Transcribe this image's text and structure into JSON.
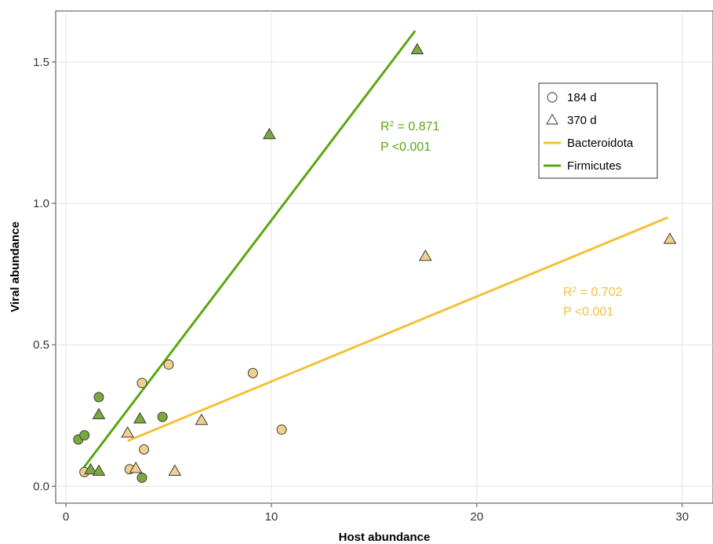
{
  "chart_data": {
    "type": "scatter",
    "xlabel": "Host abundance",
    "ylabel": "Viral abundance",
    "xlim": [
      -0.5,
      31.5
    ],
    "ylim": [
      -0.06,
      1.68
    ],
    "xticks": [
      0,
      10,
      20,
      30
    ],
    "yticks": [
      0.0,
      0.5,
      1.0,
      1.5
    ],
    "xtick_labels": [
      "0",
      "10",
      "20",
      "30"
    ],
    "ytick_labels": [
      "0.0",
      "0.5",
      "1.0",
      "1.5"
    ],
    "grid": true,
    "legend_position": "top-right",
    "legend": {
      "markers": [
        {
          "label": "184 d",
          "shape": "circle"
        },
        {
          "label": "370 d",
          "shape": "triangle"
        }
      ],
      "lines": [
        {
          "label": "Bacteroidota",
          "color": "#f2c23a"
        },
        {
          "label": "Firmicutes",
          "color": "#5aa812"
        }
      ]
    },
    "series": [
      {
        "name": "Firmicutes",
        "color": "#7aaa3e",
        "line_color": "#5aa812",
        "fit": {
          "x": [
            0.7,
            17.0
          ],
          "y": [
            0.05,
            1.61
          ]
        },
        "annotation": {
          "r2_prefix": "R",
          "r2_sup": "2",
          "r2_value": " = 0.871",
          "p": "P <0.001"
        },
        "points_184d": [
          [
            0.6,
            0.165
          ],
          [
            0.9,
            0.18
          ],
          [
            1.6,
            0.315
          ],
          [
            4.7,
            0.245
          ],
          [
            3.7,
            0.03
          ]
        ],
        "points_370d": [
          [
            1.2,
            0.06
          ],
          [
            1.6,
            0.055
          ],
          [
            1.6,
            0.255
          ],
          [
            3.6,
            0.24
          ],
          [
            9.9,
            1.245
          ],
          [
            17.1,
            1.545
          ]
        ]
      },
      {
        "name": "Bacteroidota",
        "color": "#f1cf8f",
        "line_color": "#f2c23a",
        "fit": {
          "x": [
            3.0,
            29.3
          ],
          "y": [
            0.16,
            0.95
          ]
        },
        "annotation": {
          "r2_prefix": "R",
          "r2_sup": "2",
          "r2_value": " = 0.702",
          "p": "P <0.001"
        },
        "points_184d": [
          [
            0.9,
            0.05
          ],
          [
            3.1,
            0.06
          ],
          [
            3.8,
            0.13
          ],
          [
            3.7,
            0.365
          ],
          [
            5.0,
            0.43
          ],
          [
            9.1,
            0.4
          ],
          [
            10.5,
            0.2
          ]
        ],
        "points_370d": [
          [
            3.0,
            0.19
          ],
          [
            3.4,
            0.065
          ],
          [
            5.3,
            0.055
          ],
          [
            6.6,
            0.235
          ],
          [
            17.5,
            0.815
          ],
          [
            29.4,
            0.875
          ]
        ]
      }
    ]
  }
}
